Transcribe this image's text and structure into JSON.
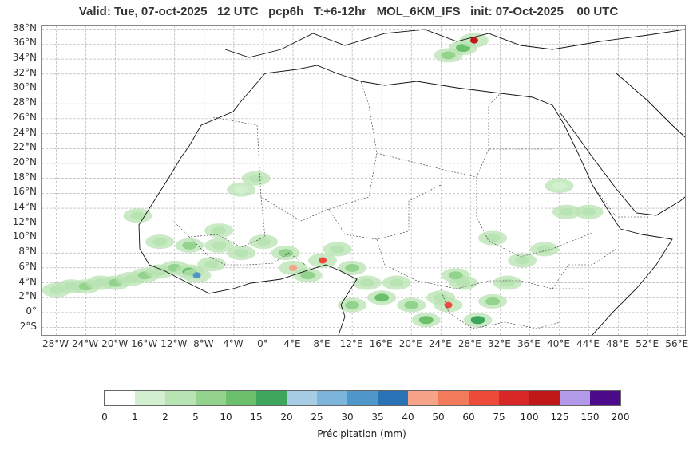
{
  "title": "Valid: Tue, 07-oct-2025   12 UTC   pcp6h   T:+6-12hr   MOL_6KM_IFS   init: 07-Oct-2025    00 UTC",
  "lat_labels": [
    "38°N",
    "36°N",
    "34°N",
    "32°N",
    "30°N",
    "28°N",
    "26°N",
    "24°N",
    "22°N",
    "20°N",
    "18°N",
    "16°N",
    "14°N",
    "12°N",
    "10°N",
    "8°N",
    "6°N",
    "4°N",
    "2°N",
    "0°",
    "2°S"
  ],
  "lon_labels": [
    "28°W",
    "24°W",
    "20°W",
    "16°W",
    "12°W",
    "8°W",
    "4°W",
    "0°",
    "4°E",
    "8°E",
    "12°E",
    "16°E",
    "20°E",
    "24°E",
    "28°E",
    "32°E",
    "36°E",
    "40°E",
    "44°E",
    "48°E",
    "52°E",
    "56°E"
  ],
  "colorbar": {
    "label": "Précipitation (mm)",
    "ticks": [
      "0",
      "1",
      "2",
      "5",
      "10",
      "15",
      "20",
      "25",
      "30",
      "35",
      "40",
      "50",
      "60",
      "75",
      "100",
      "125",
      "150",
      "200"
    ],
    "colors": [
      "#ffffff",
      "#d2f0d0",
      "#b8e3b2",
      "#94d38e",
      "#6cc06c",
      "#3ea65c",
      "#a6cde4",
      "#7bb5dc",
      "#4f97c9",
      "#2a72b6",
      "#f6a38a",
      "#f47a5c",
      "#ee4a3a",
      "#d82727",
      "#c01818",
      "#b39ae8",
      "#4b0a8a"
    ]
  },
  "map": {
    "extent": {
      "lon_min": -30,
      "lon_max": 57,
      "lat_min": -3,
      "lat_max": 38.5
    },
    "gridline_color": "#aaaaaa",
    "precip_cells": [
      {
        "lon": -28,
        "lat": 3.0,
        "level": 2
      },
      {
        "lon": -26,
        "lat": 3.5,
        "level": 2
      },
      {
        "lon": -24,
        "lat": 3.5,
        "level": 3
      },
      {
        "lon": -22,
        "lat": 4.0,
        "level": 2
      },
      {
        "lon": -20,
        "lat": 4.0,
        "level": 3
      },
      {
        "lon": -18,
        "lat": 4.5,
        "level": 2
      },
      {
        "lon": -16,
        "lat": 5.0,
        "level": 3
      },
      {
        "lon": -14,
        "lat": 5.5,
        "level": 2
      },
      {
        "lon": -12,
        "lat": 6.0,
        "level": 3
      },
      {
        "lon": -10,
        "lat": 5.5,
        "level": 4
      },
      {
        "lon": -9,
        "lat": 5.0,
        "level": 8
      },
      {
        "lon": -7,
        "lat": 6.5,
        "level": 2
      },
      {
        "lon": -14,
        "lat": 9.5,
        "level": 2
      },
      {
        "lon": -10,
        "lat": 9.0,
        "level": 3
      },
      {
        "lon": -6,
        "lat": 9.0,
        "level": 2
      },
      {
        "lon": -3,
        "lat": 8.0,
        "level": 2
      },
      {
        "lon": 0,
        "lat": 9.5,
        "level": 2
      },
      {
        "lon": 3,
        "lat": 8.0,
        "level": 3
      },
      {
        "lon": 4,
        "lat": 6.0,
        "level": 10
      },
      {
        "lon": 6,
        "lat": 5.0,
        "level": 3
      },
      {
        "lon": 8,
        "lat": 7.0,
        "level": 12
      },
      {
        "lon": 10,
        "lat": 8.5,
        "level": 2
      },
      {
        "lon": 12,
        "lat": 6.0,
        "level": 3
      },
      {
        "lon": 14,
        "lat": 4.0,
        "level": 2
      },
      {
        "lon": 12,
        "lat": 1.0,
        "level": 3
      },
      {
        "lon": 16,
        "lat": 2.0,
        "level": 4
      },
      {
        "lon": 18,
        "lat": 4.0,
        "level": 2
      },
      {
        "lon": 20,
        "lat": 1.0,
        "level": 3
      },
      {
        "lon": 22,
        "lat": -1.0,
        "level": 4
      },
      {
        "lon": 24,
        "lat": 2.0,
        "level": 2
      },
      {
        "lon": 25,
        "lat": 1.0,
        "level": 12
      },
      {
        "lon": 27,
        "lat": 4.0,
        "level": 2
      },
      {
        "lon": 29,
        "lat": -1.0,
        "level": 5
      },
      {
        "lon": 31,
        "lat": 1.5,
        "level": 3
      },
      {
        "lon": 33,
        "lat": 4.0,
        "level": 2
      },
      {
        "lon": 35,
        "lat": 7.0,
        "level": 2
      },
      {
        "lon": 38,
        "lat": 8.5,
        "level": 2
      },
      {
        "lon": 41,
        "lat": 13.5,
        "level": 2
      },
      {
        "lon": 44,
        "lat": 13.5,
        "level": 2
      },
      {
        "lon": 40,
        "lat": 17.0,
        "level": 1
      },
      {
        "lon": 31,
        "lat": 10.0,
        "level": 2
      },
      {
        "lon": 26,
        "lat": 5.0,
        "level": 3
      },
      {
        "lon": -17,
        "lat": 13.0,
        "level": 2
      },
      {
        "lon": -6,
        "lat": 11.0,
        "level": 2
      },
      {
        "lon": -1,
        "lat": 18.0,
        "level": 2
      },
      {
        "lon": -3,
        "lat": 16.5,
        "level": 1
      },
      {
        "lon": 25,
        "lat": 34.5,
        "level": 3
      },
      {
        "lon": 27,
        "lat": 35.5,
        "level": 4
      },
      {
        "lon": 28.5,
        "lat": 36.5,
        "level": 14
      }
    ]
  }
}
